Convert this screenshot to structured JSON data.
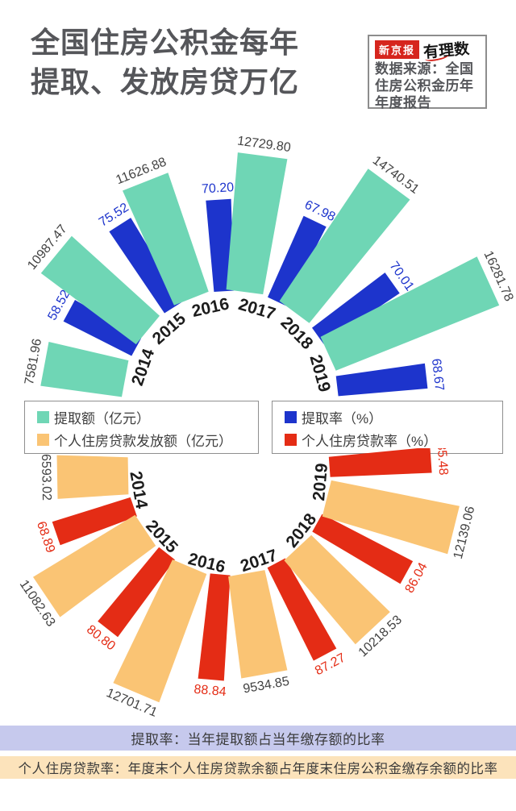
{
  "header": {
    "title_line1": "全国住房公积金每年",
    "title_line2": "提取、发放房贷万亿",
    "brand": {
      "paper": "新京报",
      "column": "有理数"
    },
    "source_note": "数据来源：全国\n住房公积金历年\n年度报告"
  },
  "legend": {
    "items": [
      {
        "label": "提取额（亿元）",
        "color": "#6fd6b5"
      },
      {
        "label": "提取率（%）",
        "color": "#1d34cc"
      },
      {
        "label": "个人住房贷款发放额（亿元）",
        "color": "#fac474"
      },
      {
        "label": "个人住房贷款率（%）",
        "color": "#e42c15"
      }
    ]
  },
  "notes": [
    {
      "text": "提取率：当年提取额占当年缴存额的比率",
      "bg": "#c6c9ed"
    },
    {
      "text": "个人住房贷款率：年度末个人住房贷款余额占年度末住房公积金缴存余额的比率",
      "bg": "#fce3bb"
    }
  ],
  "colors": {
    "withdrawal_amount": "#6fd6b5",
    "withdrawal_rate": "#1d34cc",
    "loan_amount": "#fac474",
    "loan_rate": "#e42c15",
    "brand_red": "#d6251d",
    "title_gray": "#55565a",
    "year_label": "#1c1c1c",
    "value_label": "#424242"
  },
  "chart_data": [
    {
      "type": "radial-fan-bar",
      "orientation": "up",
      "categories": [
        "2014",
        "2015",
        "2016",
        "2017",
        "2018",
        "2019"
      ],
      "series": [
        {
          "name": "提取额（亿元）",
          "color": "#6fd6b5",
          "values": [
            7581.96,
            10987.47,
            11626.88,
            12729.8,
            14740.51,
            16281.78
          ],
          "labels": [
            "7581.96",
            "10987.47",
            "11626.88",
            "12729.80",
            "14740.51",
            "16281.78"
          ]
        },
        {
          "name": "提取率（%）",
          "color": "#1d34cc",
          "values": [
            58.52,
            75.52,
            70.2,
            67.98,
            70.01,
            68.67
          ],
          "labels": [
            "58.52",
            "75.52",
            "70.20",
            "67.98",
            "70.01",
            "68.67"
          ]
        }
      ]
    },
    {
      "type": "radial-fan-bar",
      "orientation": "down",
      "categories": [
        "2014",
        "2015",
        "2016",
        "2017",
        "2018",
        "2019"
      ],
      "series": [
        {
          "name": "个人住房贷款发放额（亿元）",
          "color": "#fac474",
          "values": [
            6593.02,
            11082.63,
            12701.71,
            9534.85,
            10218.53,
            12139.06
          ],
          "labels": [
            "6593.02",
            "11082.63",
            "12701.71",
            "9534.85",
            "10218.53",
            "12139.06"
          ]
        },
        {
          "name": "个人住房贷款率（%）",
          "color": "#e42c15",
          "values": [
            68.89,
            80.8,
            88.84,
            87.27,
            86.04,
            85.48
          ],
          "labels": [
            "68.89",
            "80.80",
            "88.84",
            "87.27",
            "86.04",
            "85.48"
          ]
        }
      ]
    }
  ]
}
